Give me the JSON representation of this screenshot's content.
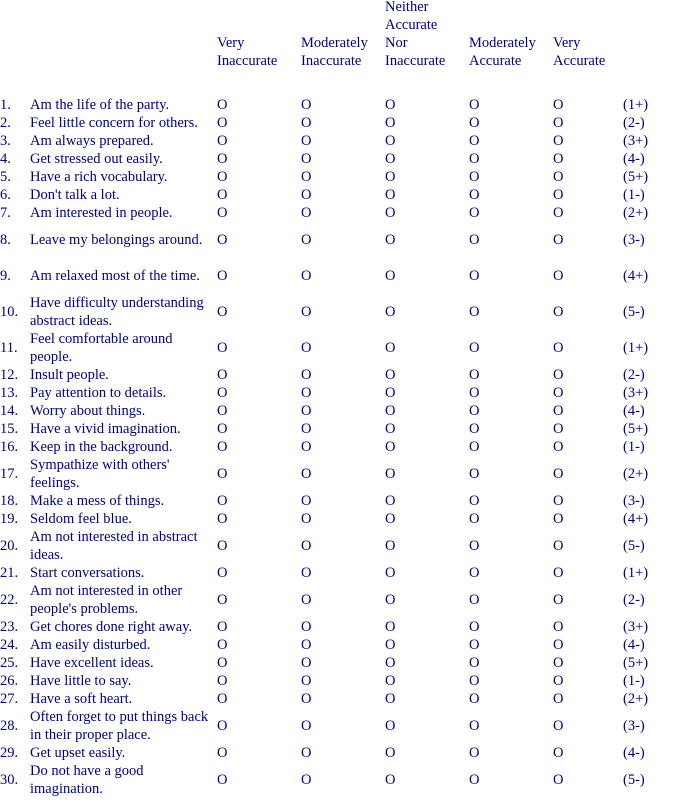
{
  "columns": {
    "very_inaccurate": [
      "Very",
      "Inaccurate"
    ],
    "moderately_inaccurate": [
      "Moderately",
      "Inaccurate"
    ],
    "neither": [
      "Neither",
      "Accurate",
      "Nor",
      "Inaccurate"
    ],
    "moderately_accurate": [
      "Moderately",
      "Accurate"
    ],
    "very_accurate": [
      "Very",
      "Accurate"
    ]
  },
  "header": {
    "very_inaccurate_l1": "Very",
    "very_inaccurate_l2": "Inaccurate",
    "moderately_inaccurate_l1": "Moderately",
    "moderately_inaccurate_l2": "Inaccurate",
    "neither_l1": "Neither",
    "neither_l2": "Accurate",
    "neither_l3": "Nor",
    "neither_l4": "Inaccurate",
    "moderately_accurate_l1": "Moderately",
    "moderately_accurate_l2": "Accurate",
    "very_accurate_l1": "Very",
    "very_accurate_l2": "Accurate"
  },
  "option_mark": "O",
  "items": [
    {
      "num": "1.",
      "text": "Am the life of the party.",
      "key": "(1+)",
      "lines": 1
    },
    {
      "num": "2.",
      "text": "Feel little concern for others.",
      "key": "(2-)",
      "lines": 1
    },
    {
      "num": "3.",
      "text": "Am always prepared.",
      "key": "(3+)",
      "lines": 1
    },
    {
      "num": "4.",
      "text": "Get stressed out easily.",
      "key": "(4-)",
      "lines": 1
    },
    {
      "num": "5.",
      "text": "Have a rich vocabulary.",
      "key": "(5+)",
      "lines": 1
    },
    {
      "num": "6.",
      "text": "Don't talk a lot.",
      "key": "(1-)",
      "lines": 1
    },
    {
      "num": "7.",
      "text": "Am interested in people.",
      "key": "(2+)",
      "lines": 1
    },
    {
      "num": "8.",
      "text": "Leave my belongings around.",
      "key": "(3-)",
      "lines": 2
    },
    {
      "num": "9.",
      "text": "Am relaxed most of the time.",
      "key": "(4+)",
      "lines": 2
    },
    {
      "num": "10.",
      "text": "Have difficulty understanding abstract ideas.",
      "key": "(5-)",
      "lines": 2
    },
    {
      "num": "11.",
      "text": "Feel comfortable around people.",
      "key": "(1+)",
      "lines": 2
    },
    {
      "num": "12.",
      "text": "Insult people.",
      "key": "(2-)",
      "lines": 1
    },
    {
      "num": "13.",
      "text": "Pay attention to details.",
      "key": "(3+)",
      "lines": 1
    },
    {
      "num": "14.",
      "text": "Worry about things.",
      "key": "(4-)",
      "lines": 1
    },
    {
      "num": "15.",
      "text": "Have a vivid imagination.",
      "key": "(5+)",
      "lines": 1
    },
    {
      "num": "16.",
      "text": "Keep in the background.",
      "key": "(1-)",
      "lines": 1
    },
    {
      "num": "17.",
      "text": "Sympathize with others' feelings.",
      "key": "(2+)",
      "lines": 2
    },
    {
      "num": "18.",
      "text": "Make a mess of things.",
      "key": "(3-)",
      "lines": 1
    },
    {
      "num": "19.",
      "text": "Seldom feel blue.",
      "key": "(4+)",
      "lines": 1
    },
    {
      "num": "20.",
      "text": "Am not interested in abstract ideas.",
      "key": "(5-)",
      "lines": 2
    },
    {
      "num": "21.",
      "text": "Start conversations.",
      "key": "(1+)",
      "lines": 1
    },
    {
      "num": "22.",
      "text": "Am not interested in other people's problems.",
      "key": "(2-)",
      "lines": 2
    },
    {
      "num": "23.",
      "text": "Get chores done right away.",
      "key": "(3+)",
      "lines": 1
    },
    {
      "num": "24.",
      "text": "Am easily disturbed.",
      "key": "(4-)",
      "lines": 1
    },
    {
      "num": "25.",
      "text": "Have excellent ideas.",
      "key": "(5+)",
      "lines": 1
    },
    {
      "num": "26.",
      "text": "Have little to say.",
      "key": "(1-)",
      "lines": 1
    },
    {
      "num": "27.",
      "text": "Have a soft heart.",
      "key": "(2+)",
      "lines": 1
    },
    {
      "num": "28.",
      "text": "Often forget to put things back in their proper place.",
      "key": "(3-)",
      "lines": 2
    },
    {
      "num": "29.",
      "text": "Get upset easily.",
      "key": "(4-)",
      "lines": 1
    },
    {
      "num": "30.",
      "text": "Do not have a good imagination.",
      "key": "(5-)",
      "lines": 2
    }
  ]
}
